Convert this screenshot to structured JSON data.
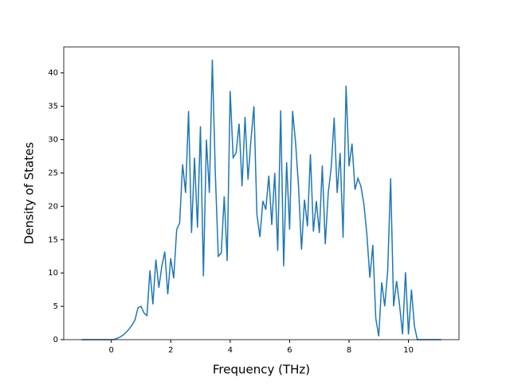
{
  "chart_data": {
    "type": "line",
    "xlabel": "Frequency (THz)",
    "ylabel": "Density of States",
    "x": [
      -1.0,
      -0.9,
      -0.8,
      -0.7,
      -0.6,
      -0.5,
      -0.4,
      -0.3,
      -0.2,
      -0.1,
      0.0,
      0.1,
      0.2,
      0.3,
      0.4,
      0.5,
      0.6,
      0.7,
      0.8,
      0.9,
      1.0,
      1.1,
      1.2,
      1.3,
      1.4,
      1.5,
      1.6,
      1.7,
      1.8,
      1.9,
      2.0,
      2.1,
      2.2,
      2.3,
      2.4,
      2.5,
      2.6,
      2.7,
      2.8,
      2.9,
      3.0,
      3.1,
      3.2,
      3.3,
      3.4,
      3.5,
      3.6,
      3.7,
      3.8,
      3.9,
      4.0,
      4.1,
      4.2,
      4.3,
      4.4,
      4.5,
      4.6,
      4.7,
      4.8,
      4.9,
      5.0,
      5.1,
      5.2,
      5.3,
      5.4,
      5.5,
      5.6,
      5.7,
      5.8,
      5.9,
      6.0,
      6.1,
      6.2,
      6.3,
      6.4,
      6.5,
      6.6,
      6.7,
      6.8,
      6.9,
      7.0,
      7.1,
      7.2,
      7.3,
      7.4,
      7.5,
      7.6,
      7.7,
      7.8,
      7.9,
      8.0,
      8.1,
      8.2,
      8.3,
      8.4,
      8.5,
      8.6,
      8.7,
      8.8,
      8.9,
      9.0,
      9.1,
      9.2,
      9.3,
      9.4,
      9.5,
      9.6,
      9.7,
      9.8,
      9.9,
      10.0,
      10.1,
      10.2,
      10.3,
      10.4,
      10.5,
      10.6,
      10.7,
      10.8,
      10.9,
      11.0,
      11.1
    ],
    "series": [
      {
        "color": "#1f77b4",
        "values": [
          0,
          0,
          0,
          0,
          0,
          0,
          0,
          0,
          0,
          0,
          0,
          0.05,
          0.2,
          0.4,
          0.7,
          1.1,
          1.6,
          2.2,
          3.0,
          4.8,
          5.0,
          4.0,
          3.6,
          10.4,
          5.3,
          12.0,
          7.8,
          11.0,
          13.2,
          6.8,
          12.2,
          9.2,
          16.5,
          17.5,
          26.3,
          22.0,
          34.3,
          16.0,
          27.3,
          16.8,
          32.0,
          9.5,
          30.0,
          22.0,
          42.0,
          25.0,
          12.5,
          13.0,
          21.5,
          11.8,
          37.3,
          27.3,
          28.0,
          32.4,
          23.0,
          33.4,
          24.0,
          30.0,
          35.0,
          18.8,
          15.4,
          20.8,
          19.5,
          24.6,
          17.2,
          25.0,
          13.3,
          34.4,
          11.0,
          26.6,
          16.5,
          34.3,
          29.6,
          23.0,
          13.5,
          21.0,
          17.0,
          27.8,
          16.2,
          20.8,
          16.0,
          26.1,
          14.3,
          22.0,
          25.8,
          33.3,
          22.0,
          28.0,
          15.3,
          38.1,
          26.0,
          29.4,
          22.5,
          24.2,
          23.0,
          20.3,
          15.8,
          9.3,
          14.2,
          3.2,
          0.5,
          8.6,
          5.0,
          10.3,
          24.2,
          5.0,
          8.8,
          5.2,
          0.8,
          10.1,
          0.8,
          7.5,
          2.0,
          0,
          0,
          0,
          0,
          0,
          0,
          0,
          0,
          0
        ]
      }
    ],
    "xlim": [
      -1.6,
      11.7
    ],
    "ylim": [
      0,
      43.9
    ],
    "xticks": [
      0,
      2,
      4,
      6,
      8,
      10
    ],
    "yticks": [
      0,
      5,
      10,
      15,
      20,
      25,
      30,
      35,
      40
    ]
  }
}
